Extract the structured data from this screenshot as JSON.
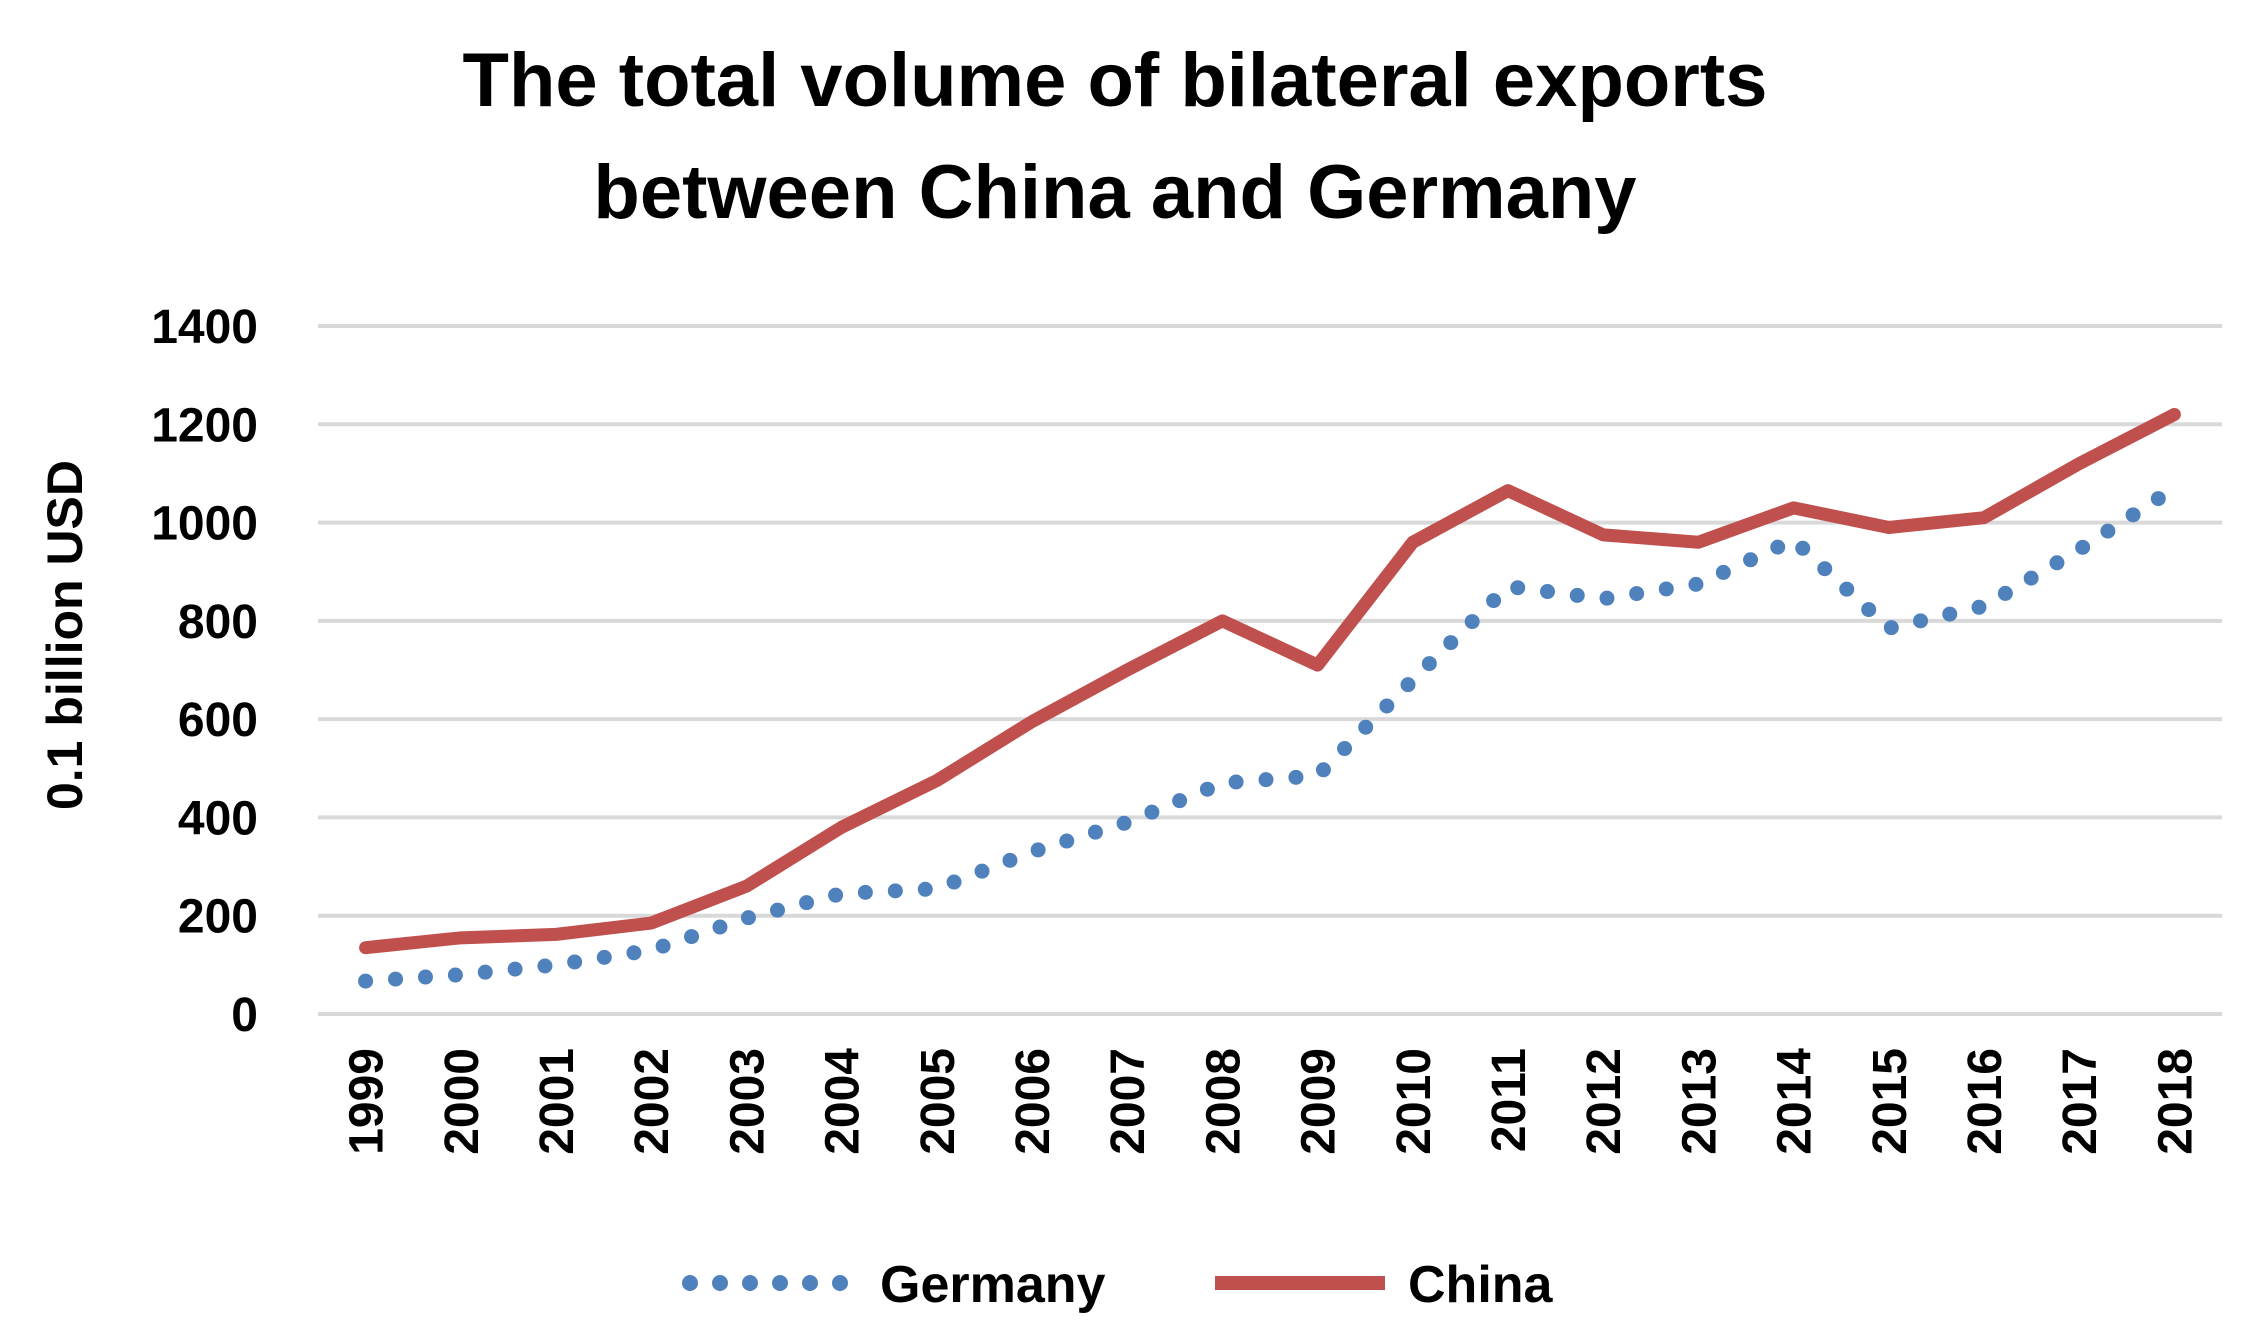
{
  "chart_data": {
    "type": "line",
    "title": [
      "The total volume of bilateral exports",
      "between China and Germany"
    ],
    "xlabel": "",
    "ylabel": "0.1 billion USD",
    "ylim": [
      0,
      1400
    ],
    "yticks": [
      0,
      200,
      400,
      600,
      800,
      1000,
      1200,
      1400
    ],
    "grid": true,
    "legend_position": "bottom",
    "categories": [
      "1999",
      "2000",
      "2001",
      "2002",
      "2003",
      "2004",
      "2005",
      "2006",
      "2007",
      "2008",
      "2009",
      "2010",
      "2011",
      "2012",
      "2013",
      "2014",
      "2015",
      "2016",
      "2017",
      "2018"
    ],
    "series": [
      {
        "name": "Germany",
        "style": "dotted",
        "color": "#4F81BD",
        "values": [
          67,
          80,
          100,
          130,
          195,
          245,
          255,
          330,
          390,
          470,
          485,
          680,
          870,
          845,
          875,
          965,
          785,
          830,
          945,
          1070
        ]
      },
      {
        "name": "China",
        "style": "solid",
        "color": "#C0504D",
        "values": [
          135,
          155,
          162,
          185,
          260,
          380,
          475,
          595,
          700,
          800,
          710,
          960,
          1065,
          975,
          960,
          1030,
          990,
          1010,
          1120,
          1220
        ]
      }
    ]
  }
}
